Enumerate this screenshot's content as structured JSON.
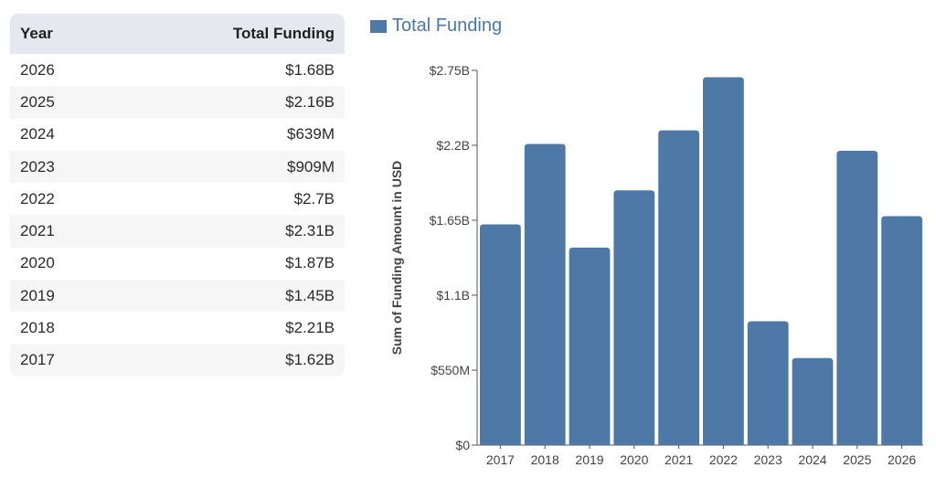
{
  "table": {
    "headers": {
      "year": "Year",
      "funding": "Total Funding"
    },
    "rows": [
      {
        "year": "2026",
        "funding": "$1.68B"
      },
      {
        "year": "2025",
        "funding": "$2.16B"
      },
      {
        "year": "2024",
        "funding": "$639M"
      },
      {
        "year": "2023",
        "funding": "$909M"
      },
      {
        "year": "2022",
        "funding": "$2.7B"
      },
      {
        "year": "2021",
        "funding": "$2.31B"
      },
      {
        "year": "2020",
        "funding": "$1.87B"
      },
      {
        "year": "2019",
        "funding": "$1.45B"
      },
      {
        "year": "2018",
        "funding": "$2.21B"
      },
      {
        "year": "2017",
        "funding": "$1.62B"
      }
    ]
  },
  "chart_data": {
    "type": "bar",
    "title": "",
    "xlabel": "",
    "ylabel": "Sum of Funding Amount in USD",
    "legend": {
      "entries": [
        "Total Funding"
      ],
      "placement": "top-left"
    },
    "categories": [
      "2017",
      "2018",
      "2019",
      "2020",
      "2021",
      "2022",
      "2023",
      "2024",
      "2025",
      "2026"
    ],
    "series": [
      {
        "name": "Total Funding",
        "values": [
          1620000000,
          2210000000,
          1450000000,
          1870000000,
          2310000000,
          2700000000,
          909000000,
          639000000,
          2160000000,
          1680000000
        ]
      }
    ],
    "ylim": [
      0,
      2750000000
    ],
    "yticks": [
      0,
      550000000,
      1100000000,
      1650000000,
      2200000000,
      2750000000
    ],
    "ytick_labels": [
      "$0",
      "$550M",
      "$1.1B",
      "$1.65B",
      "$2.2B",
      "$2.75B"
    ],
    "grid": false,
    "colors": {
      "bar": "#4e78a6",
      "legend_text": "#4a78a8"
    }
  }
}
